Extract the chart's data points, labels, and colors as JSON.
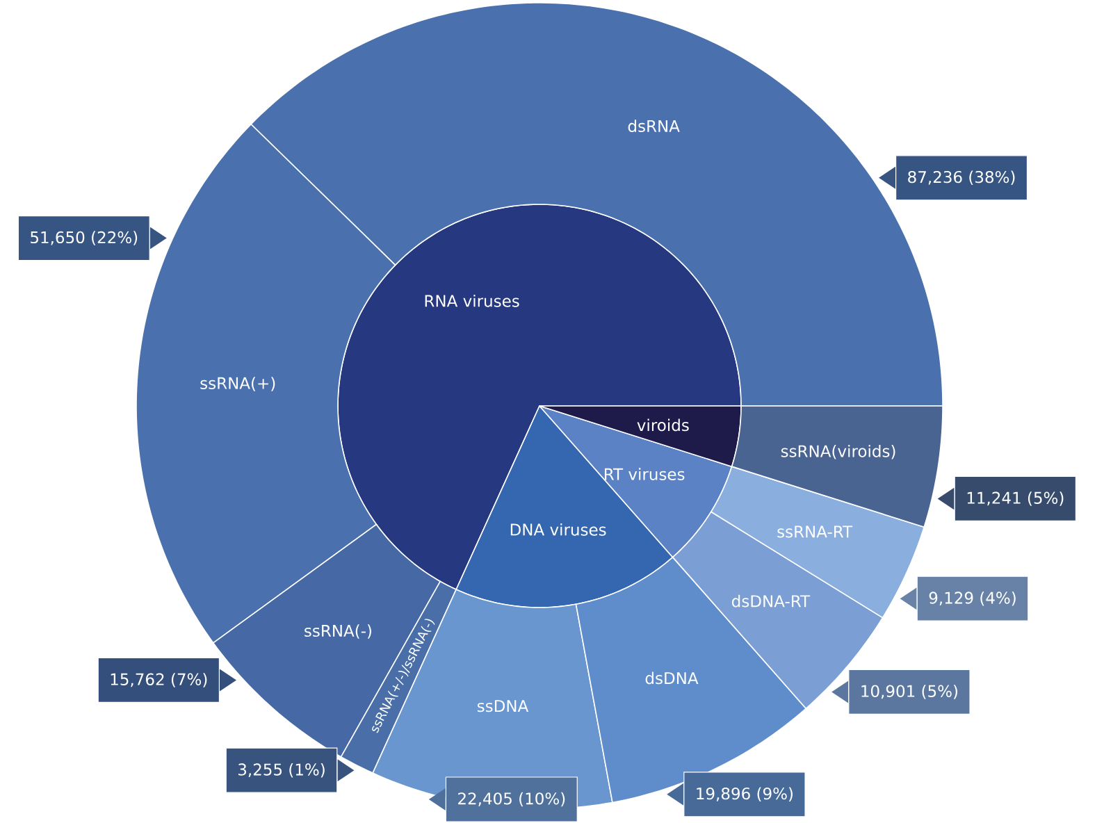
{
  "chart_data": [
    {
      "type": "pie",
      "categories": [
        "RNA viruses",
        "DNA viruses",
        "RT viruses",
        "viroids"
      ],
      "values": [
        68.22,
        18.27,
        8.65,
        4.86
      ],
      "colors": [
        "#26387f",
        "#3566b0",
        "#5a82c4",
        "#1e1b4b"
      ]
    },
    {
      "type": "donut",
      "categories": [
        "dsRNA",
        "ssRNA(+)",
        "ssRNA(-)",
        "ssRNA(+/-)/ssRNA(-)",
        "ssDNA",
        "dsDNA",
        "dsDNA-RT",
        "ssRNA-RT",
        "ssRNA(viroids)"
      ],
      "values": [
        87236,
        51650,
        15762,
        3255,
        22405,
        19896,
        10901,
        9129,
        11241
      ],
      "colors": [
        "#4a71ad",
        "#4a71ad",
        "#4669a6",
        "#4a6fa8",
        "#6a96d0",
        "#5f8dcb",
        "#7b9fd4",
        "#8aaede",
        "#4a6491"
      ],
      "value_labels": [
        "87,236 (38%)",
        "51,650 (22%)",
        "15,762 (7%)",
        "3,255 (1%)",
        "22,405 (10%)",
        "19,896 (9%)",
        "10,901 (5%)",
        "9,129 (4%)",
        "11,241 (5%)"
      ]
    }
  ]
}
